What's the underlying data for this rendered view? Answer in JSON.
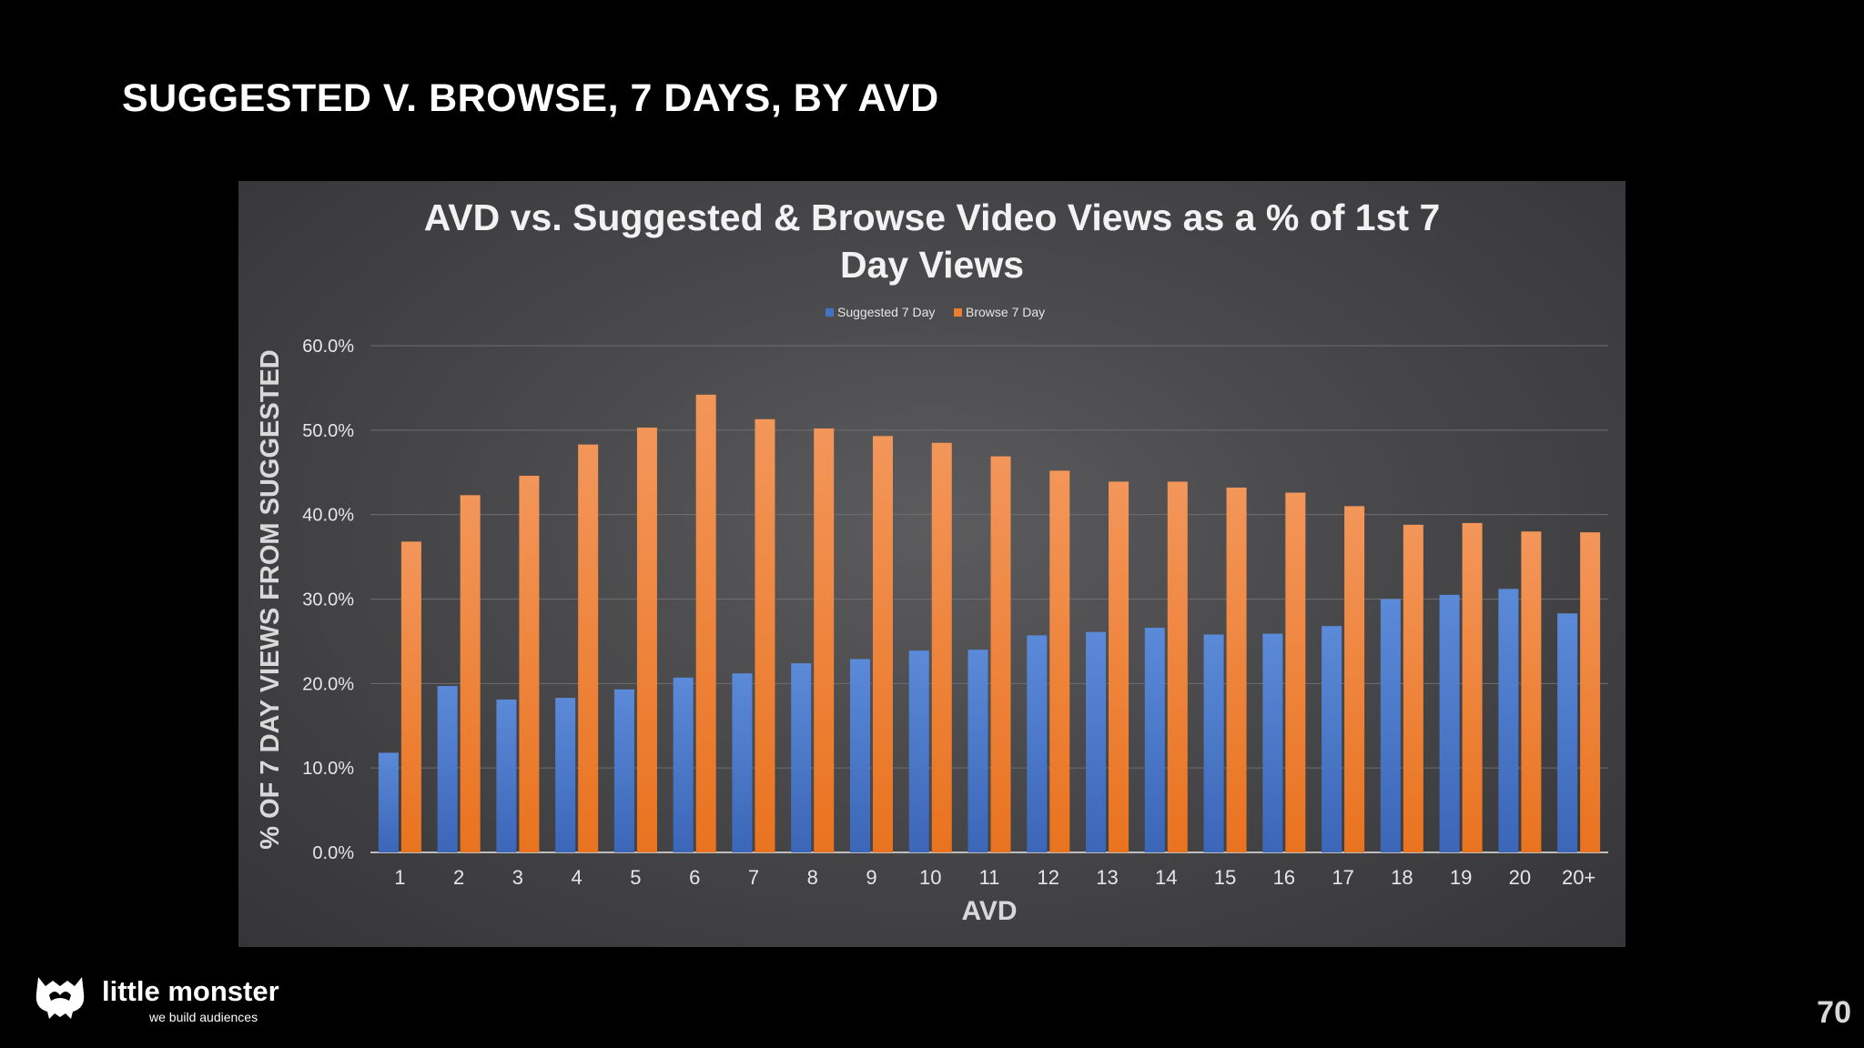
{
  "slide": {
    "title": "SUGGESTED V. BROWSE, 7 DAYS, BY AVD",
    "page_number": "70",
    "logo_name": "little monster",
    "logo_tagline": "we build audiences"
  },
  "chart_data": {
    "type": "bar",
    "title_line1": "AVD vs. Suggested & Browse Video Views as a % of 1st 7",
    "title_line2": "Day Views",
    "xlabel": "AVD",
    "ylabel": "% OF 7 DAY VIEWS FROM SUGGESTED",
    "categories": [
      "1",
      "2",
      "3",
      "4",
      "5",
      "6",
      "7",
      "8",
      "9",
      "10",
      "11",
      "12",
      "13",
      "14",
      "15",
      "16",
      "17",
      "18",
      "19",
      "20",
      "20+"
    ],
    "series": [
      {
        "name": "Suggested 7 Day",
        "color": "#4472c4",
        "values": [
          11.8,
          19.7,
          18.1,
          18.3,
          19.3,
          20.7,
          21.2,
          22.4,
          22.9,
          23.9,
          24.0,
          25.7,
          26.1,
          26.6,
          25.8,
          25.9,
          26.8,
          30.0,
          30.5,
          31.2,
          28.3
        ]
      },
      {
        "name": "Browse 7 Day",
        "color": "#ed7d31",
        "values": [
          36.8,
          42.3,
          44.6,
          48.3,
          50.3,
          54.2,
          51.3,
          50.2,
          49.3,
          48.5,
          46.9,
          45.2,
          43.9,
          43.9,
          43.2,
          42.6,
          41.0,
          38.8,
          39.0,
          38.0,
          37.9
        ]
      }
    ],
    "yticks": [
      "0.0%",
      "10.0%",
      "20.0%",
      "30.0%",
      "40.0%",
      "50.0%",
      "60.0%"
    ],
    "ylim": [
      0,
      60
    ],
    "grid": true,
    "legend_position": "top"
  }
}
